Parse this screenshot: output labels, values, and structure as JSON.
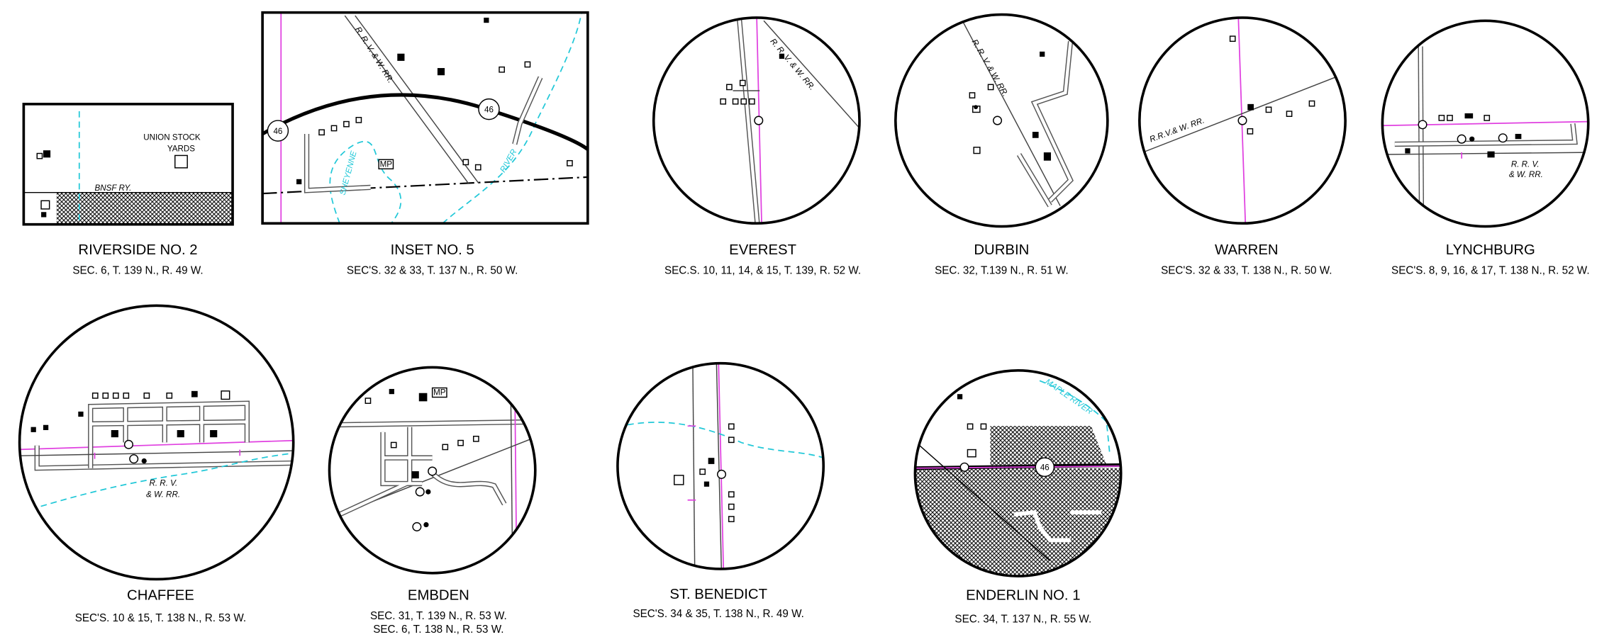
{
  "insets": [
    {
      "title": "RIVERSIDE NO. 2",
      "subtitle": [
        "SEC. 6, T. 139 N., R. 49 W."
      ],
      "labels": [
        "UNION STOCK",
        "YARDS",
        "BNSF RY."
      ]
    },
    {
      "title": "INSET NO. 5",
      "subtitle": [
        "SEC'S. 32 & 33, T. 137 N., R. 50 W."
      ],
      "labels": [
        "R.  R.  V.  &  W.  RR.",
        "46",
        "46",
        "MP",
        "SHEYENNE",
        "RIVER"
      ]
    },
    {
      "title": "EVEREST",
      "subtitle": [
        "SEC.S. 10, 11, 14, & 15, T. 139, R. 52 W."
      ],
      "labels": [
        "R.  R.  V.  &  W.  RR."
      ]
    },
    {
      "title": "DURBIN",
      "subtitle": [
        "SEC. 32, T.139 N., R. 51 W."
      ],
      "labels": [
        "R.  R.  V.  &  W.  RR."
      ]
    },
    {
      "title": "WARREN",
      "subtitle": [
        "SEC'S. 32 & 33, T. 138 N., R. 50 W."
      ],
      "labels": [
        "R.R.V.& W.  RR."
      ]
    },
    {
      "title": "LYNCHBURG",
      "subtitle": [
        "SEC'S. 8, 9, 16, & 17, T. 138 N., R. 52 W."
      ],
      "labels": [
        "R. R. V.",
        "& W. RR."
      ]
    },
    {
      "title": "CHAFFEE",
      "subtitle": [
        "SEC'S. 10 & 15, T. 138 N., R. 53 W."
      ],
      "labels": [
        "R. R. V.",
        "& W. RR."
      ]
    },
    {
      "title": "EMBDEN",
      "subtitle": [
        "SEC. 31, T. 139 N., R. 53 W.",
        "SEC. 6, T. 138 N., R. 53 W."
      ],
      "labels": [
        "MP"
      ]
    },
    {
      "title": "ST. BENEDICT",
      "subtitle": [
        "SEC'S. 34 & 35, T. 138 N., R. 49 W."
      ],
      "labels": []
    },
    {
      "title": "ENDERLIN NO. 1",
      "subtitle": [
        "SEC. 34, T. 137 N., R. 55 W."
      ],
      "labels": [
        "46",
        "MAPLE RIVER"
      ]
    }
  ]
}
